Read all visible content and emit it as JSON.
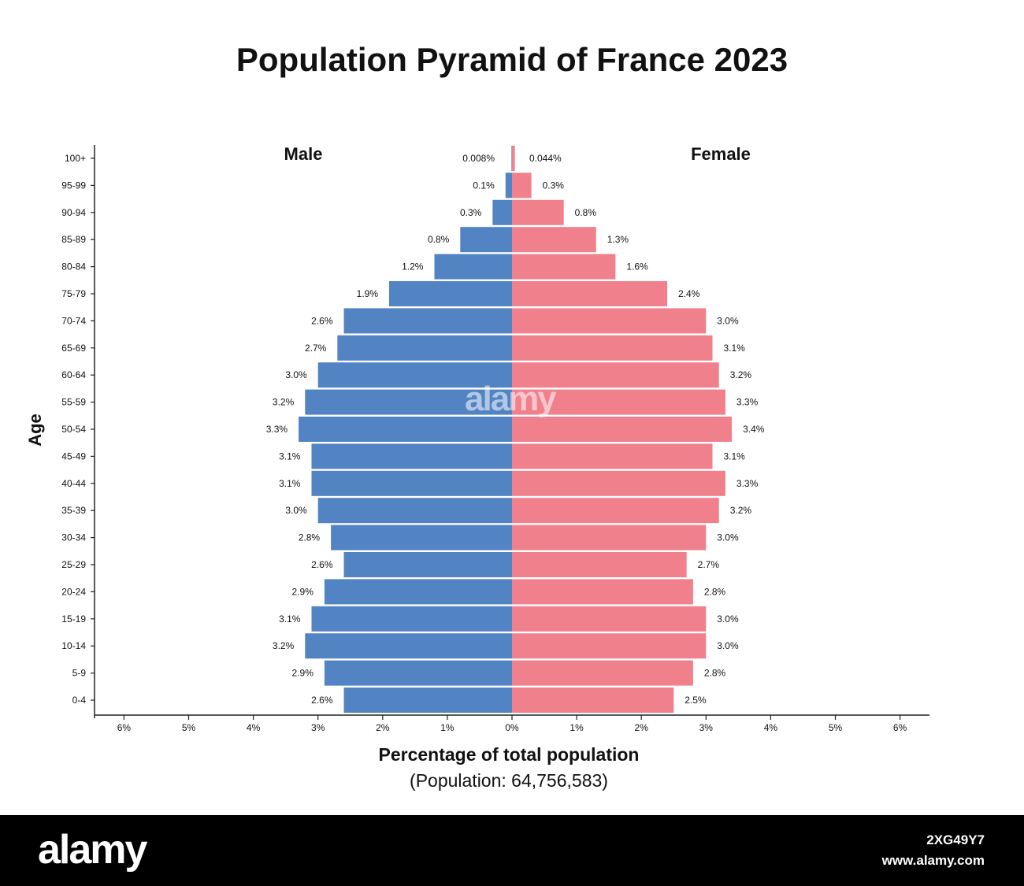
{
  "chart_data": {
    "type": "bar",
    "title": "Population Pyramid of France 2023",
    "ylabel": "Age",
    "xlabel": "Percentage of total population",
    "subtitle": "(Population: 64,756,583)",
    "xlim": [
      -6,
      6
    ],
    "x_ticks": [
      "6%",
      "5%",
      "4%",
      "3%",
      "2%",
      "1%",
      "0%",
      "1%",
      "2%",
      "3%",
      "4%",
      "5%",
      "6%"
    ],
    "categories": [
      "100+",
      "95-99",
      "90-94",
      "85-89",
      "80-84",
      "75-79",
      "70-74",
      "65-69",
      "60-64",
      "55-59",
      "50-54",
      "45-49",
      "40-44",
      "35-39",
      "30-34",
      "25-29",
      "20-24",
      "15-19",
      "10-14",
      "5-9",
      "0-4"
    ],
    "series": [
      {
        "name": "Male",
        "color": "#5283c3",
        "values": [
          0.008,
          0.1,
          0.3,
          0.8,
          1.2,
          1.9,
          2.6,
          2.7,
          3.0,
          3.2,
          3.3,
          3.1,
          3.1,
          3.0,
          2.8,
          2.6,
          2.9,
          3.1,
          3.2,
          2.9,
          2.6
        ],
        "labels": [
          "0.008%",
          "0.1%",
          "0.3%",
          "0.8%",
          "1.2%",
          "1.9%",
          "2.6%",
          "2.7%",
          "3.0%",
          "3.2%",
          "3.3%",
          "3.1%",
          "3.1%",
          "3.0%",
          "2.8%",
          "2.6%",
          "2.9%",
          "3.1%",
          "3.2%",
          "2.9%",
          "2.6%"
        ]
      },
      {
        "name": "Female",
        "color": "#f0808c",
        "values": [
          0.044,
          0.3,
          0.8,
          1.3,
          1.6,
          2.4,
          3.0,
          3.1,
          3.2,
          3.3,
          3.4,
          3.1,
          3.3,
          3.2,
          3.0,
          2.7,
          2.8,
          3.0,
          3.0,
          2.8,
          2.5
        ],
        "labels": [
          "0.044%",
          "0.3%",
          "0.8%",
          "1.3%",
          "1.6%",
          "2.4%",
          "3.0%",
          "3.1%",
          "3.2%",
          "3.3%",
          "3.4%",
          "3.1%",
          "3.3%",
          "3.2%",
          "3.0%",
          "2.7%",
          "2.8%",
          "3.0%",
          "3.0%",
          "2.8%",
          "2.5%"
        ]
      }
    ],
    "grid": false,
    "legend": "series names printed above each side"
  },
  "watermark": {
    "logo": "alamy",
    "image_id": "2XG49Y7",
    "url": "www.alamy.com",
    "center_mark": "alamy"
  }
}
